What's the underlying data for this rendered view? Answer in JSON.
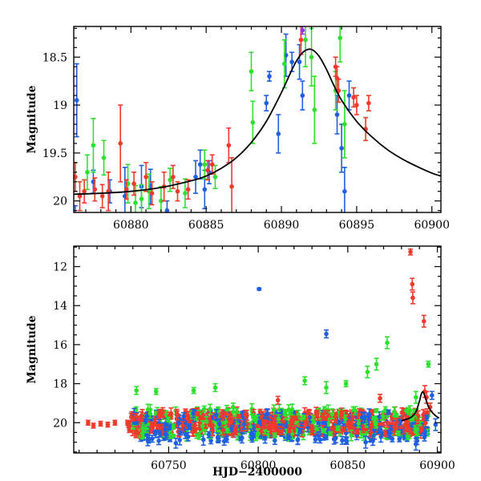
{
  "chart_data": [
    {
      "type": "scatter",
      "title": "",
      "xlabel": "",
      "ylabel": "Magnitude",
      "xlim": [
        60876.2,
        60900.6
      ],
      "ylim": [
        20.12,
        18.18
      ],
      "y_inverted": true,
      "x_ticks": [
        60880,
        60885,
        60890,
        60895,
        60900
      ],
      "y_ticks": [
        18.5,
        19,
        19.5,
        20
      ],
      "x_tick_labels": [
        "60880",
        "60885",
        "60890",
        "60895",
        "60900"
      ],
      "y_tick_labels": [
        "18.5",
        "19",
        "19.5",
        "20"
      ],
      "model_curve": {
        "color": "#000000",
        "x": [
          60876.2,
          60878,
          60880,
          60882,
          60884,
          60885,
          60886,
          60887,
          60888,
          60889,
          60890,
          60890.5,
          60891,
          60891.5,
          60892,
          60892.5,
          60893,
          60893.5,
          60894,
          60895,
          60896,
          60897,
          60898,
          60899,
          60900,
          60900.6
        ],
        "y": [
          19.93,
          19.92,
          19.9,
          19.86,
          19.79,
          19.74,
          19.66,
          19.55,
          19.39,
          19.17,
          18.87,
          18.7,
          18.54,
          18.44,
          18.42,
          18.49,
          18.63,
          18.8,
          18.95,
          19.17,
          19.33,
          19.46,
          19.56,
          19.64,
          19.71,
          19.74
        ]
      },
      "series": [
        {
          "color": "#1f5fe0",
          "points": [
            {
              "x": 60876.4,
              "y": 18.95,
              "err": 0.38
            },
            {
              "x": 60876.3,
              "y": 20.15,
              "err": 0.1
            },
            {
              "x": 60877.5,
              "y": 19.8,
              "err": 0.12
            },
            {
              "x": 60878.6,
              "y": 19.9,
              "err": 0.12
            },
            {
              "x": 60879.6,
              "y": 19.95,
              "err": 0.3
            },
            {
              "x": 60880.7,
              "y": 19.85,
              "err": 0.22
            },
            {
              "x": 60881.3,
              "y": 19.85,
              "err": 0.18
            },
            {
              "x": 60882.4,
              "y": 20.1,
              "err": 0.1
            },
            {
              "x": 60884.3,
              "y": 19.75,
              "err": 0.17
            },
            {
              "x": 60884.6,
              "y": 19.62,
              "err": 0.15
            },
            {
              "x": 60884.9,
              "y": 19.88,
              "err": 0.2
            },
            {
              "x": 60885.2,
              "y": 19.7,
              "err": 0.12
            },
            {
              "x": 60889.2,
              "y": 18.7,
              "err": 0.05
            },
            {
              "x": 60889.0,
              "y": 18.98,
              "err": 0.08
            },
            {
              "x": 60889.8,
              "y": 19.3,
              "err": 0.2
            },
            {
              "x": 60890.3,
              "y": 18.48,
              "err": 0.22
            },
            {
              "x": 60890.7,
              "y": 18.55,
              "err": 0.1
            },
            {
              "x": 60891.2,
              "y": 18.55,
              "err": 0.18
            },
            {
              "x": 60891.4,
              "y": 18.9,
              "err": 0.15
            },
            {
              "x": 60893.7,
              "y": 19.1,
              "err": 0.2
            },
            {
              "x": 60894.0,
              "y": 19.45,
              "err": 0.25
            },
            {
              "x": 60894.2,
              "y": 19.9,
              "err": 0.25
            },
            {
              "x": 60894.5,
              "y": 18.9,
              "err": 0.15
            }
          ]
        },
        {
          "color": "#2ee02e",
          "points": [
            {
              "x": 60877.1,
              "y": 19.7,
              "err": 0.18
            },
            {
              "x": 60877.5,
              "y": 19.42,
              "err": 0.28
            },
            {
              "x": 60878.2,
              "y": 19.55,
              "err": 0.18
            },
            {
              "x": 60879.8,
              "y": 19.82,
              "err": 0.2
            },
            {
              "x": 60880.3,
              "y": 20.02,
              "err": 0.18
            },
            {
              "x": 60880.7,
              "y": 19.98,
              "err": 0.15
            },
            {
              "x": 60881.2,
              "y": 19.9,
              "err": 0.18
            },
            {
              "x": 60882.0,
              "y": 20.0,
              "err": 0.15
            },
            {
              "x": 60882.6,
              "y": 19.78,
              "err": 0.12
            },
            {
              "x": 60883.6,
              "y": 19.92,
              "err": 0.15
            },
            {
              "x": 60884.9,
              "y": 19.62,
              "err": 0.15
            },
            {
              "x": 60885.6,
              "y": 19.75,
              "err": 0.12
            },
            {
              "x": 60888.0,
              "y": 18.65,
              "err": 0.2
            },
            {
              "x": 60888.1,
              "y": 19.18,
              "err": 0.22
            },
            {
              "x": 60890.2,
              "y": 18.57,
              "err": 0.25
            },
            {
              "x": 60891.6,
              "y": 18.32,
              "err": 0.28
            },
            {
              "x": 60892.0,
              "y": 18.5,
              "err": 0.3
            },
            {
              "x": 60892.2,
              "y": 19.05,
              "err": 0.35
            },
            {
              "x": 60893.6,
              "y": 18.85,
              "err": 0.2
            },
            {
              "x": 60893.9,
              "y": 18.3,
              "err": 0.25
            },
            {
              "x": 60894.2,
              "y": 19.2,
              "err": 0.35
            }
          ]
        },
        {
          "color": "#f03a2c",
          "points": [
            {
              "x": 60876.3,
              "y": 19.75,
              "err": 0.15
            },
            {
              "x": 60876.6,
              "y": 19.95,
              "err": 0.15
            },
            {
              "x": 60876.9,
              "y": 19.9,
              "err": 0.12
            },
            {
              "x": 60877.6,
              "y": 19.88,
              "err": 0.12
            },
            {
              "x": 60878.1,
              "y": 19.95,
              "err": 0.12
            },
            {
              "x": 60878.5,
              "y": 19.9,
              "err": 0.2
            },
            {
              "x": 60879.3,
              "y": 19.4,
              "err": 0.4
            },
            {
              "x": 60879.7,
              "y": 19.88,
              "err": 0.1
            },
            {
              "x": 60880.2,
              "y": 19.82,
              "err": 0.12
            },
            {
              "x": 60881.0,
              "y": 19.75,
              "err": 0.15
            },
            {
              "x": 60881.4,
              "y": 19.92,
              "err": 0.12
            },
            {
              "x": 60882.2,
              "y": 19.85,
              "err": 0.15
            },
            {
              "x": 60882.8,
              "y": 19.75,
              "err": 0.12
            },
            {
              "x": 60883.1,
              "y": 19.9,
              "err": 0.1
            },
            {
              "x": 60883.8,
              "y": 19.88,
              "err": 0.1
            },
            {
              "x": 60885.1,
              "y": 19.68,
              "err": 0.1
            },
            {
              "x": 60885.4,
              "y": 19.62,
              "err": 0.1
            },
            {
              "x": 60886.5,
              "y": 19.42,
              "err": 0.18
            },
            {
              "x": 60886.7,
              "y": 19.85,
              "err": 0.3
            },
            {
              "x": 60891.3,
              "y": 18.32,
              "err": 0.15
            },
            {
              "x": 60893.6,
              "y": 18.6,
              "err": 0.1
            },
            {
              "x": 60893.7,
              "y": 18.72,
              "err": 0.12
            },
            {
              "x": 60893.8,
              "y": 18.85,
              "err": 0.12
            },
            {
              "x": 60894.8,
              "y": 18.92,
              "err": 0.1
            },
            {
              "x": 60895.0,
              "y": 19.0,
              "err": 0.1
            },
            {
              "x": 60895.6,
              "y": 19.25,
              "err": 0.12
            },
            {
              "x": 60895.8,
              "y": 18.98,
              "err": 0.08
            }
          ]
        },
        {
          "color": "#9b30e0",
          "points": [
            {
              "x": 60891.4,
              "y": 18.22,
              "err": 0.04
            }
          ]
        }
      ]
    },
    {
      "type": "scatter",
      "title": "",
      "xlabel": "HJD−2400000",
      "ylabel": "Magnitude",
      "xlim": [
        60697,
        60902
      ],
      "ylim": [
        21.55,
        10.95
      ],
      "y_inverted": true,
      "x_ticks": [
        60750,
        60800,
        60850,
        60900
      ],
      "y_ticks": [
        12,
        14,
        16,
        18,
        20
      ],
      "x_tick_labels": [
        "60750",
        "60800",
        "60850",
        "60900"
      ],
      "y_tick_labels": [
        "12",
        "14",
        "16",
        "18",
        "20"
      ],
      "series": [
        {
          "color": "#1f5fe0",
          "points": [
            {
              "x": 60800.5,
              "y": 13.15,
              "err": 0.05
            },
            {
              "x": 60838.0,
              "y": 15.45,
              "err": 0.2
            },
            {
              "x": 60754.0,
              "y": 21.05,
              "err": 0.25
            },
            {
              "x": 60781.0,
              "y": 20.95,
              "err": 0.2
            },
            {
              "x": 60860.0,
              "y": 21.0,
              "err": 0.3
            },
            {
              "x": 60888.0,
              "y": 21.1,
              "err": 0.3
            },
            {
              "x": 60897.0,
              "y": 18.6,
              "err": 0.2
            },
            {
              "x": 60899.0,
              "y": 20.1,
              "err": 0.3
            }
          ],
          "band": {
            "x_start": 60730,
            "x_end": 60895,
            "y_center": 20.2,
            "spread": 0.75,
            "density": 0.55
          }
        },
        {
          "color": "#2ee02e",
          "points": [
            {
              "x": 60732.0,
              "y": 18.35,
              "err": 0.2
            },
            {
              "x": 60743.0,
              "y": 18.4,
              "err": 0.15
            },
            {
              "x": 60764.0,
              "y": 18.35,
              "err": 0.15
            },
            {
              "x": 60776.0,
              "y": 18.2,
              "err": 0.2
            },
            {
              "x": 60786.0,
              "y": 19.2,
              "err": 0.2
            },
            {
              "x": 60826.0,
              "y": 17.85,
              "err": 0.2
            },
            {
              "x": 60838.0,
              "y": 18.2,
              "err": 0.3
            },
            {
              "x": 60849.0,
              "y": 18.0,
              "err": 0.15
            },
            {
              "x": 60861.0,
              "y": 17.4,
              "err": 0.3
            },
            {
              "x": 60866.0,
              "y": 17.0,
              "err": 0.3
            },
            {
              "x": 60872.0,
              "y": 15.9,
              "err": 0.3
            },
            {
              "x": 60888.0,
              "y": 18.7,
              "err": 0.3
            },
            {
              "x": 60895.0,
              "y": 17.0,
              "err": 0.15
            }
          ],
          "band": {
            "x_start": 60730,
            "x_end": 60895,
            "y_center": 20.0,
            "spread": 0.7,
            "density": 0.5
          }
        },
        {
          "color": "#f03a2c",
          "points": [
            {
              "x": 60885.0,
              "y": 11.25,
              "err": 0.15
            },
            {
              "x": 60886.0,
              "y": 12.9,
              "err": 0.3
            },
            {
              "x": 60886.3,
              "y": 13.6,
              "err": 0.3
            },
            {
              "x": 60892.5,
              "y": 14.8,
              "err": 0.3
            },
            {
              "x": 60893.0,
              "y": 18.4,
              "err": 0.3
            },
            {
              "x": 60894.0,
              "y": 18.7,
              "err": 0.3
            },
            {
              "x": 60896.0,
              "y": 19.2,
              "err": 0.2
            },
            {
              "x": 60811.0,
              "y": 18.85,
              "err": 0.2
            },
            {
              "x": 60868.0,
              "y": 18.75,
              "err": 0.2
            },
            {
              "x": 60705.0,
              "y": 20.0,
              "err": 0.12
            },
            {
              "x": 60708.0,
              "y": 20.15,
              "err": 0.12
            },
            {
              "x": 60712.0,
              "y": 20.05,
              "err": 0.12
            },
            {
              "x": 60716.0,
              "y": 20.1,
              "err": 0.12
            },
            {
              "x": 60720.0,
              "y": 20.0,
              "err": 0.12
            },
            {
              "x": 60727.0,
              "y": 20.0,
              "err": 0.12
            }
          ],
          "band": {
            "x_start": 60727,
            "x_end": 60895,
            "y_center": 20.0,
            "spread": 0.55,
            "density": 0.8
          }
        }
      ],
      "model_curve": {
        "color": "#000000",
        "x": [
          60880,
          60885,
          60888,
          60890,
          60891,
          60892,
          60893,
          60895,
          60897,
          60899,
          60900,
          60901
        ],
        "y": [
          19.9,
          19.74,
          19.45,
          18.9,
          18.55,
          18.42,
          18.63,
          19.17,
          19.46,
          19.64,
          19.71,
          19.76
        ]
      }
    }
  ]
}
